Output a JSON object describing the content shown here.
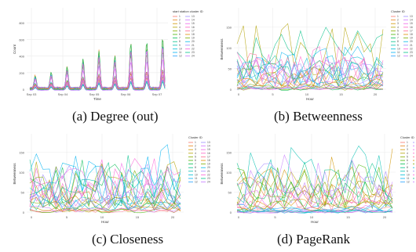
{
  "colors": {
    "palette": [
      "#f8766d",
      "#e7851e",
      "#d09400",
      "#b2a100",
      "#89ac00",
      "#45b500",
      "#00bc51",
      "#00c087",
      "#00c0b2",
      "#00bcd6",
      "#00b3f2",
      "#29a3ff",
      "#9c8dff",
      "#d277ff",
      "#f166e8",
      "#ff61c7",
      "#ff6c91",
      "#de8c00",
      "#7cae00",
      "#00b8e7",
      "#a58aff",
      "#fb61d7",
      "#00c08b",
      "#c77cff"
    ],
    "axis": "#333333",
    "grid": "#ebebeb",
    "panel_bg": "#ffffff"
  },
  "captions": {
    "a": "(a) Degree (out)",
    "b": "(b) Betweenness",
    "c": "(c) Closeness",
    "d": "(d) PageRank"
  },
  "chart_data": [
    {
      "type": "line",
      "ylabel": "Count",
      "xlabel": "Time",
      "x_ticks": [
        "Sep 03",
        "Sep 04",
        "Sep 05",
        "Sep 06",
        "Sep 07"
      ],
      "y_ticks": [
        "0",
        "200",
        "400",
        "600",
        "800"
      ],
      "ylim": [
        0,
        900
      ],
      "legend_title": "start station cluster ID",
      "legend_placement": "right",
      "legend_entries": [
        "1",
        "2",
        "3",
        "4",
        "5",
        "6",
        "7",
        "8",
        "9",
        "10",
        "11",
        "12",
        "13",
        "14",
        "15",
        "16",
        "17",
        "18",
        "19",
        "20",
        "21",
        "22",
        "23",
        "24"
      ],
      "num_series": 24,
      "peak_x": [
        1,
        1.5,
        2,
        2.5,
        3,
        3.5,
        4,
        4.5,
        5
      ],
      "peak_heights": [
        140,
        180,
        240,
        330,
        420,
        360,
        500,
        520,
        560
      ],
      "grid": true
    },
    {
      "type": "line",
      "ylabel": "Betweenness",
      "xlabel": "Hour",
      "x_ticks": [
        "0",
        "5",
        "10",
        "15",
        "20"
      ],
      "y_ticks": [
        "0",
        "50",
        "100",
        "150"
      ],
      "ylim": [
        0,
        200
      ],
      "legend_title": "Cluster ID",
      "legend_placement": "right",
      "legend_entries": [
        "1",
        "2",
        "3",
        "4",
        "5",
        "6",
        "7",
        "8",
        "9",
        "10",
        "11",
        "12",
        "13",
        "14",
        "15",
        "16",
        "17",
        "18",
        "19",
        "20",
        "21",
        "22",
        "23",
        "24"
      ],
      "num_series": 24,
      "hours": 24,
      "grid": true
    },
    {
      "type": "line",
      "ylabel": "Betweenness",
      "xlabel": "Hour",
      "x_ticks": [
        "0",
        "5",
        "10",
        "15",
        "20"
      ],
      "y_ticks": [
        "0",
        "50",
        "100",
        "150"
      ],
      "ylim": [
        0,
        170
      ],
      "legend_title": "Cluster ID",
      "legend_placement": "right",
      "legend_entries": [
        "1",
        "2",
        "3",
        "4",
        "5",
        "6",
        "7",
        "8",
        "9",
        "10",
        "11",
        "12",
        "13",
        "14",
        "15",
        "16",
        "17",
        "18",
        "19",
        "20",
        "21",
        "22",
        "23",
        "24"
      ],
      "num_series": 24,
      "hours": 24,
      "grid": true
    },
    {
      "type": "line",
      "ylabel": "Betweenness",
      "xlabel": "Hour",
      "x_ticks": [
        "0",
        "5",
        "10",
        "15",
        "20"
      ],
      "y_ticks": [
        "0",
        "50",
        "100",
        "150"
      ],
      "ylim": [
        0,
        190
      ],
      "legend_title": "Cluster ID",
      "legend_placement": "right",
      "legend_entries": [
        "1",
        "2",
        "3",
        "4",
        "5",
        "6",
        "7",
        "8",
        "9",
        "10",
        "11",
        "12",
        "13",
        "14",
        "15",
        "16",
        "17",
        "18",
        "19",
        "20",
        "21",
        "22",
        "23",
        "24"
      ],
      "num_series": 24,
      "hours": 24,
      "grid": true
    }
  ]
}
